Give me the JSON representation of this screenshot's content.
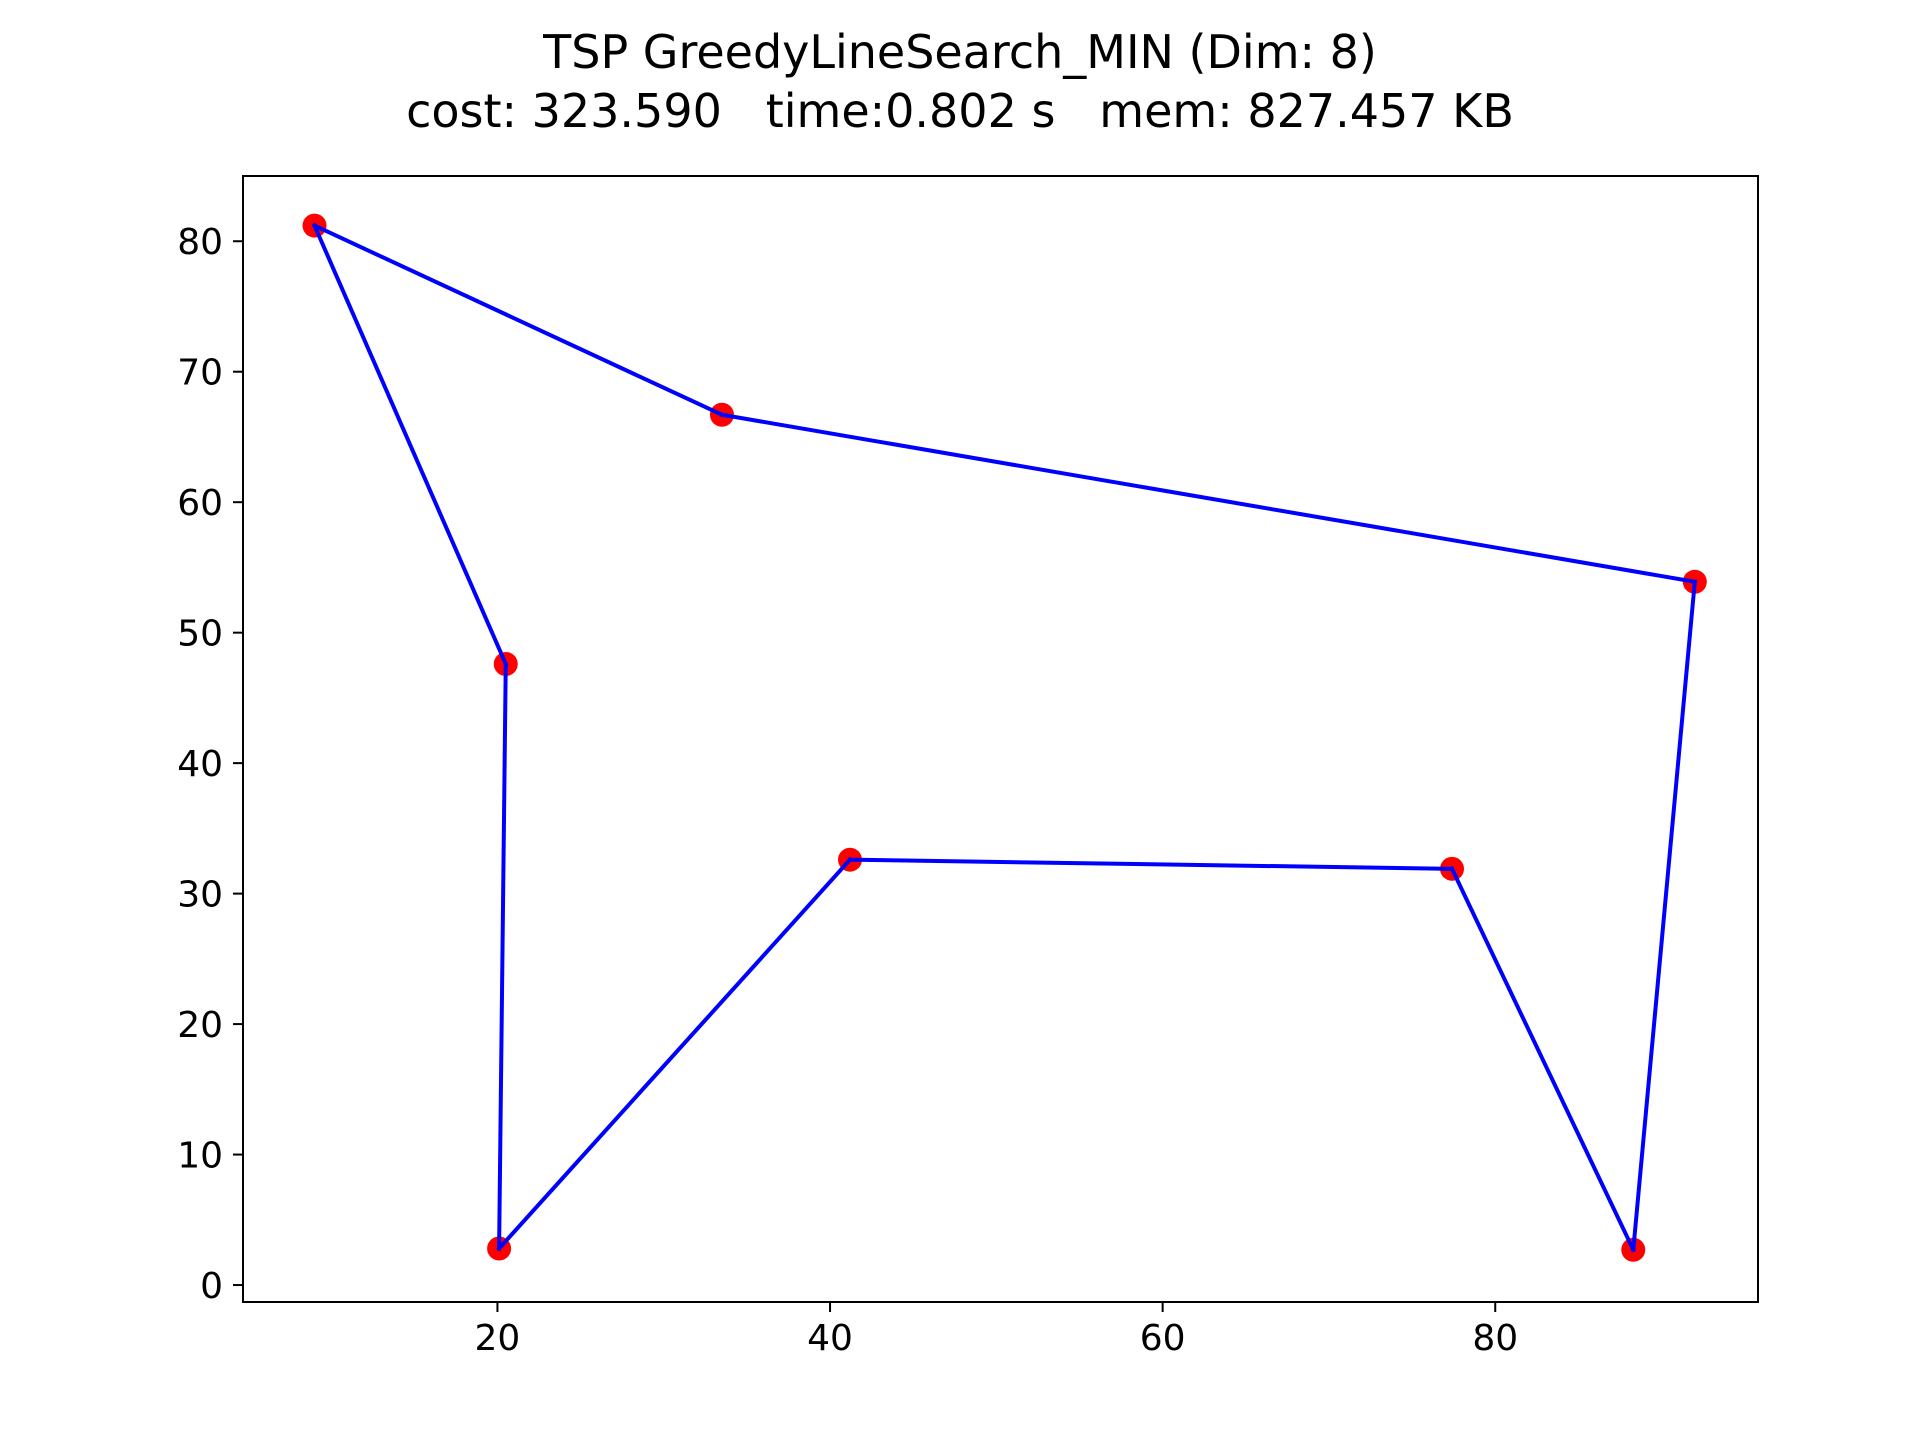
{
  "chart_data": {
    "type": "line",
    "title": "TSP GreedyLineSearch_MIN (Dim: 8)",
    "subtitle": "cost: 323.590   time:0.802 s   mem: 827.457 KB",
    "xlabel": "",
    "ylabel": "",
    "xlim": [
      4.7,
      95.8
    ],
    "ylim": [
      -1.3,
      85.0
    ],
    "xticks": [
      20,
      40,
      60,
      80
    ],
    "yticks": [
      0,
      10,
      20,
      30,
      40,
      50,
      60,
      70,
      80
    ],
    "grid": false,
    "legend": "none",
    "series": [
      {
        "route": [
          {
            "x": 20.5,
            "y": 47.6
          },
          {
            "x": 9.0,
            "y": 81.2
          },
          {
            "x": 33.5,
            "y": 66.7
          },
          {
            "x": 92.0,
            "y": 53.9
          },
          {
            "x": 88.3,
            "y": 2.7
          },
          {
            "x": 77.4,
            "y": 31.9
          },
          {
            "x": 41.2,
            "y": 32.6
          },
          {
            "x": 20.1,
            "y": 2.8
          },
          {
            "x": 20.5,
            "y": 47.6
          }
        ],
        "line_color": "#0000ff",
        "marker_color": "#ff0000"
      }
    ]
  }
}
